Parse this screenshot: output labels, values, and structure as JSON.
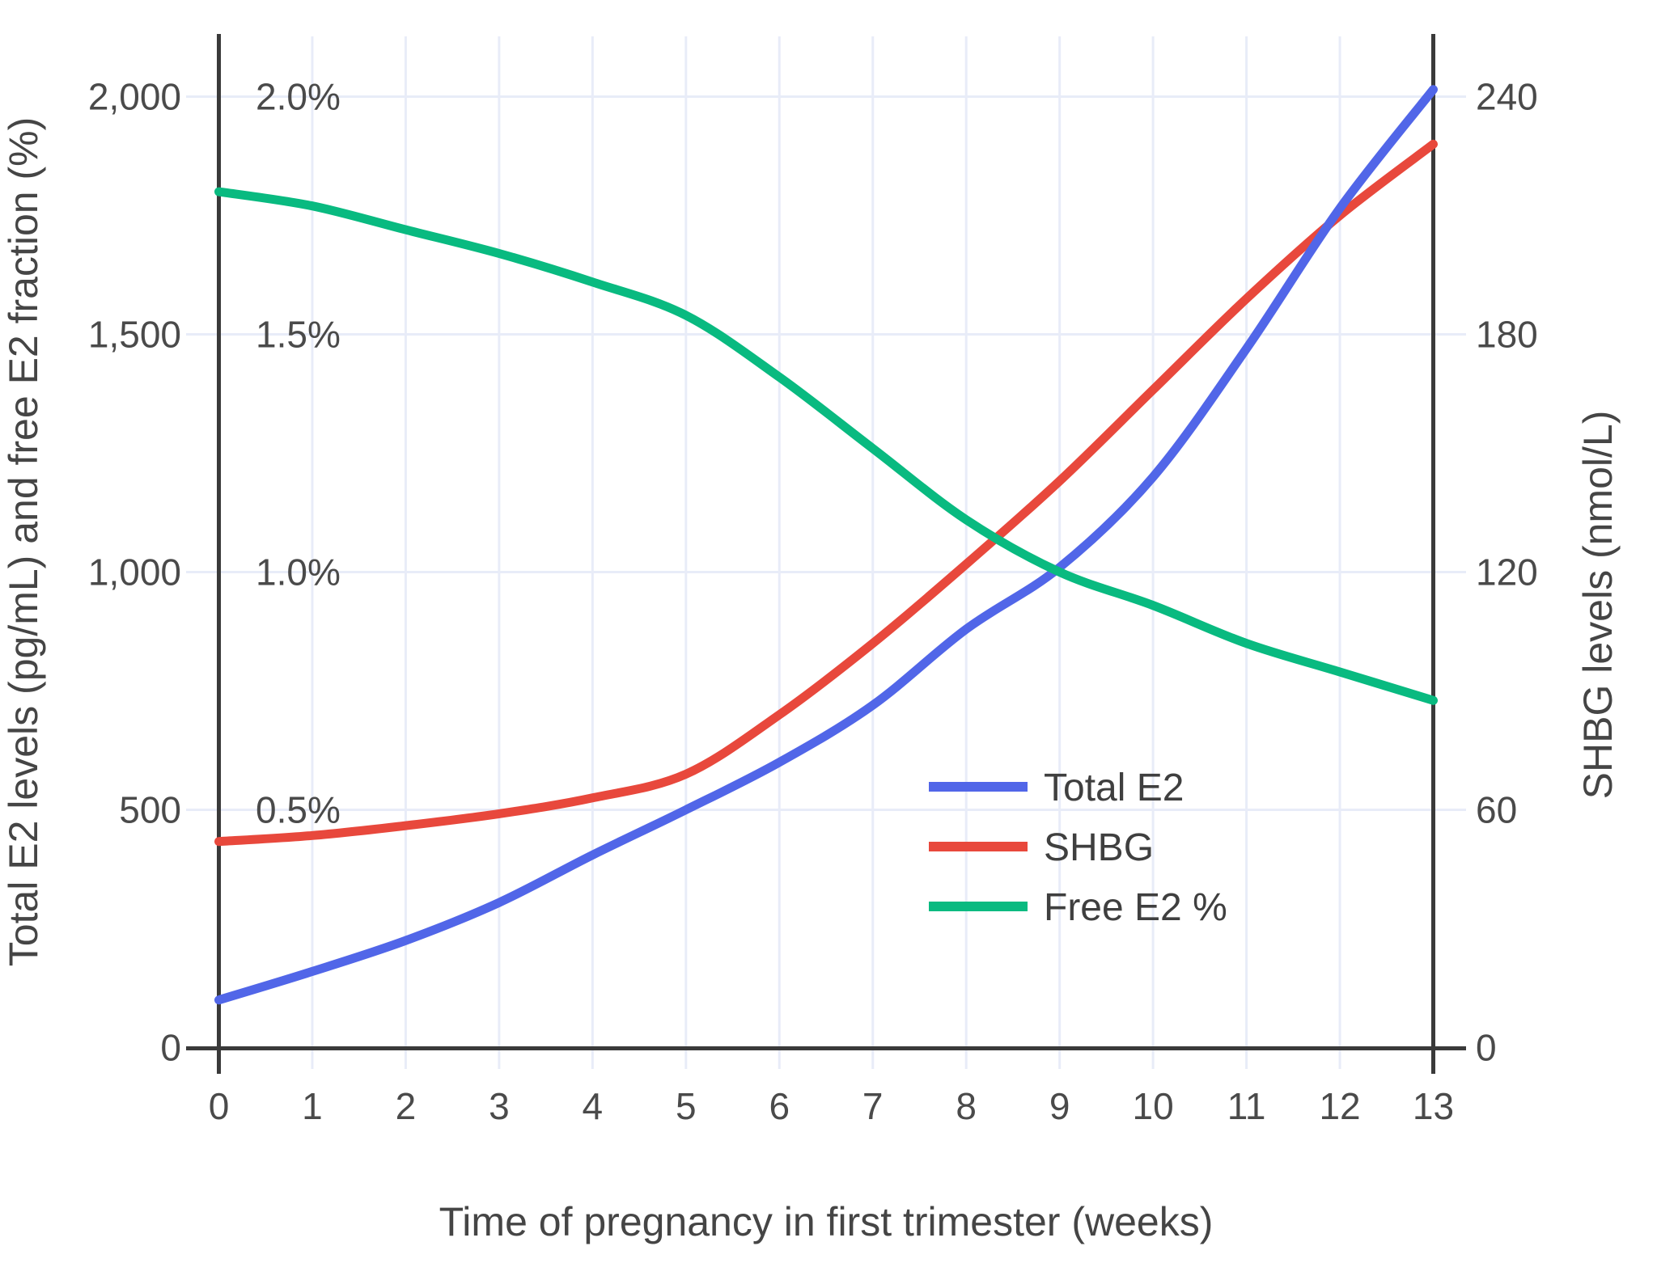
{
  "chart_data": {
    "type": "line",
    "title": "",
    "xlabel": "Time of pregnancy in first trimester (weeks)",
    "ylabel_left": "Total E2 levels (pg/mL) and free E2 fraction (%)",
    "ylabel_right": "SHBG levels (nmol/L)",
    "x": [
      0,
      1,
      2,
      3,
      4,
      5,
      6,
      7,
      8,
      9,
      10,
      11,
      12,
      13
    ],
    "x_tick_labels": [
      "0",
      "1",
      "2",
      "3",
      "4",
      "5",
      "6",
      "7",
      "8",
      "9",
      "10",
      "11",
      "12",
      "13"
    ],
    "y_left": {
      "range": [
        0,
        2000
      ],
      "tick_values": [
        0,
        500,
        1000,
        1500,
        2000
      ],
      "tick_labels": [
        "0",
        "500",
        "1,000",
        "1,500",
        "2,000"
      ]
    },
    "y_percent": {
      "tick_values": [
        500,
        1000,
        1500,
        2000
      ],
      "tick_labels": [
        "0.5%",
        "1.0%",
        "1.5%",
        "2.0%"
      ]
    },
    "y_right": {
      "range": [
        0,
        240
      ],
      "tick_values": [
        0,
        60,
        120,
        180,
        240
      ],
      "tick_labels": [
        "0",
        "60",
        "120",
        "180",
        "240"
      ]
    },
    "grid": true,
    "legend": {
      "position": "inside-right",
      "entries": [
        "Total E2",
        "SHBG",
        "Free E2 %"
      ]
    },
    "series": [
      {
        "name": "Total E2",
        "axis": "left",
        "unit": "pg/mL",
        "color": "#5166e8",
        "values": [
          100,
          160,
          225,
          305,
          405,
          500,
          600,
          720,
          880,
          1010,
          1200,
          1470,
          1765,
          2015
        ]
      },
      {
        "name": "SHBG",
        "axis": "right",
        "unit": "nmol/L",
        "color": "#e8483c",
        "values": [
          52,
          53.5,
          56,
          59,
          63,
          69,
          84,
          102,
          122,
          143,
          166,
          189,
          210,
          228
        ]
      },
      {
        "name": "Free E2 %",
        "axis": "percent",
        "unit": "%",
        "color": "#09ba80",
        "values": [
          1.8,
          1.77,
          1.72,
          1.67,
          1.61,
          1.54,
          1.41,
          1.26,
          1.11,
          1.0,
          0.93,
          0.85,
          0.79,
          0.73
        ]
      }
    ],
    "draw_order": [
      1,
      0,
      2
    ],
    "colors": {
      "grid": "#e8ecf8",
      "axis": "#3a3a3a",
      "tick_text": "#4a4a4a",
      "title_text": "#454545",
      "legend_text": "#3f3f3f",
      "background": "#ffffff"
    }
  }
}
